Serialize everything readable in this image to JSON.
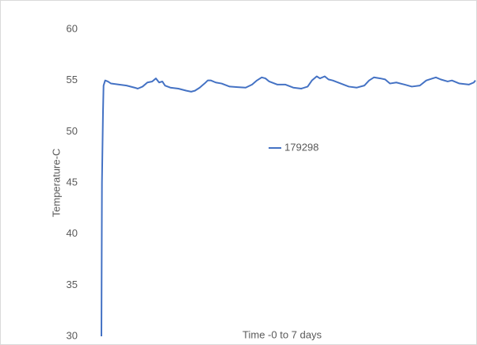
{
  "chart_data": {
    "type": "line",
    "x_label": "Time -0 to 7 days",
    "y_label": "Temperature-C",
    "xlim": [
      0,
      7
    ],
    "ylim": [
      30,
      60
    ],
    "yticks": [
      30,
      35,
      40,
      45,
      50,
      55,
      60
    ],
    "grid": false,
    "legend": "center",
    "x": [
      0,
      0.01,
      0.03,
      0.04,
      0.07,
      0.12,
      0.18,
      0.33,
      0.47,
      0.62,
      0.68,
      0.77,
      0.86,
      0.95,
      1.02,
      1.08,
      1.14,
      1.19,
      1.29,
      1.44,
      1.59,
      1.68,
      1.75,
      1.84,
      1.93,
      1.99,
      2.05,
      2.14,
      2.25,
      2.4,
      2.55,
      2.7,
      2.82,
      2.91,
      3.0,
      3.07,
      3.14,
      3.29,
      3.44,
      3.59,
      3.74,
      3.86,
      3.94,
      4.03,
      4.09,
      4.18,
      4.25,
      4.33,
      4.48,
      4.63,
      4.78,
      4.92,
      5.01,
      5.1,
      5.22,
      5.31,
      5.4,
      5.52,
      5.67,
      5.81,
      5.96,
      6.08,
      6.2,
      6.26,
      6.35,
      6.48,
      6.56,
      6.7,
      6.88,
      6.97,
      7.0
    ],
    "series": [
      {
        "name": "179298",
        "color": "#4472c4",
        "values": [
          30,
          45,
          52,
          54.5,
          55,
          54.9,
          54.7,
          54.6,
          54.5,
          54.3,
          54.2,
          54.4,
          54.8,
          54.9,
          55.2,
          54.8,
          54.9,
          54.5,
          54.3,
          54.2,
          54.0,
          53.9,
          54.0,
          54.3,
          54.7,
          55.0,
          55.0,
          54.8,
          54.7,
          54.4,
          54.35,
          54.3,
          54.6,
          55.0,
          55.3,
          55.2,
          54.9,
          54.6,
          54.6,
          54.3,
          54.2,
          54.4,
          55.0,
          55.4,
          55.2,
          55.4,
          55.1,
          55.0,
          54.7,
          54.4,
          54.3,
          54.5,
          55.0,
          55.3,
          55.2,
          55.1,
          54.7,
          54.8,
          54.6,
          54.4,
          54.5,
          55.0,
          55.2,
          55.3,
          55.1,
          54.9,
          55.0,
          54.7,
          54.6,
          54.8,
          55.0
        ]
      }
    ]
  }
}
